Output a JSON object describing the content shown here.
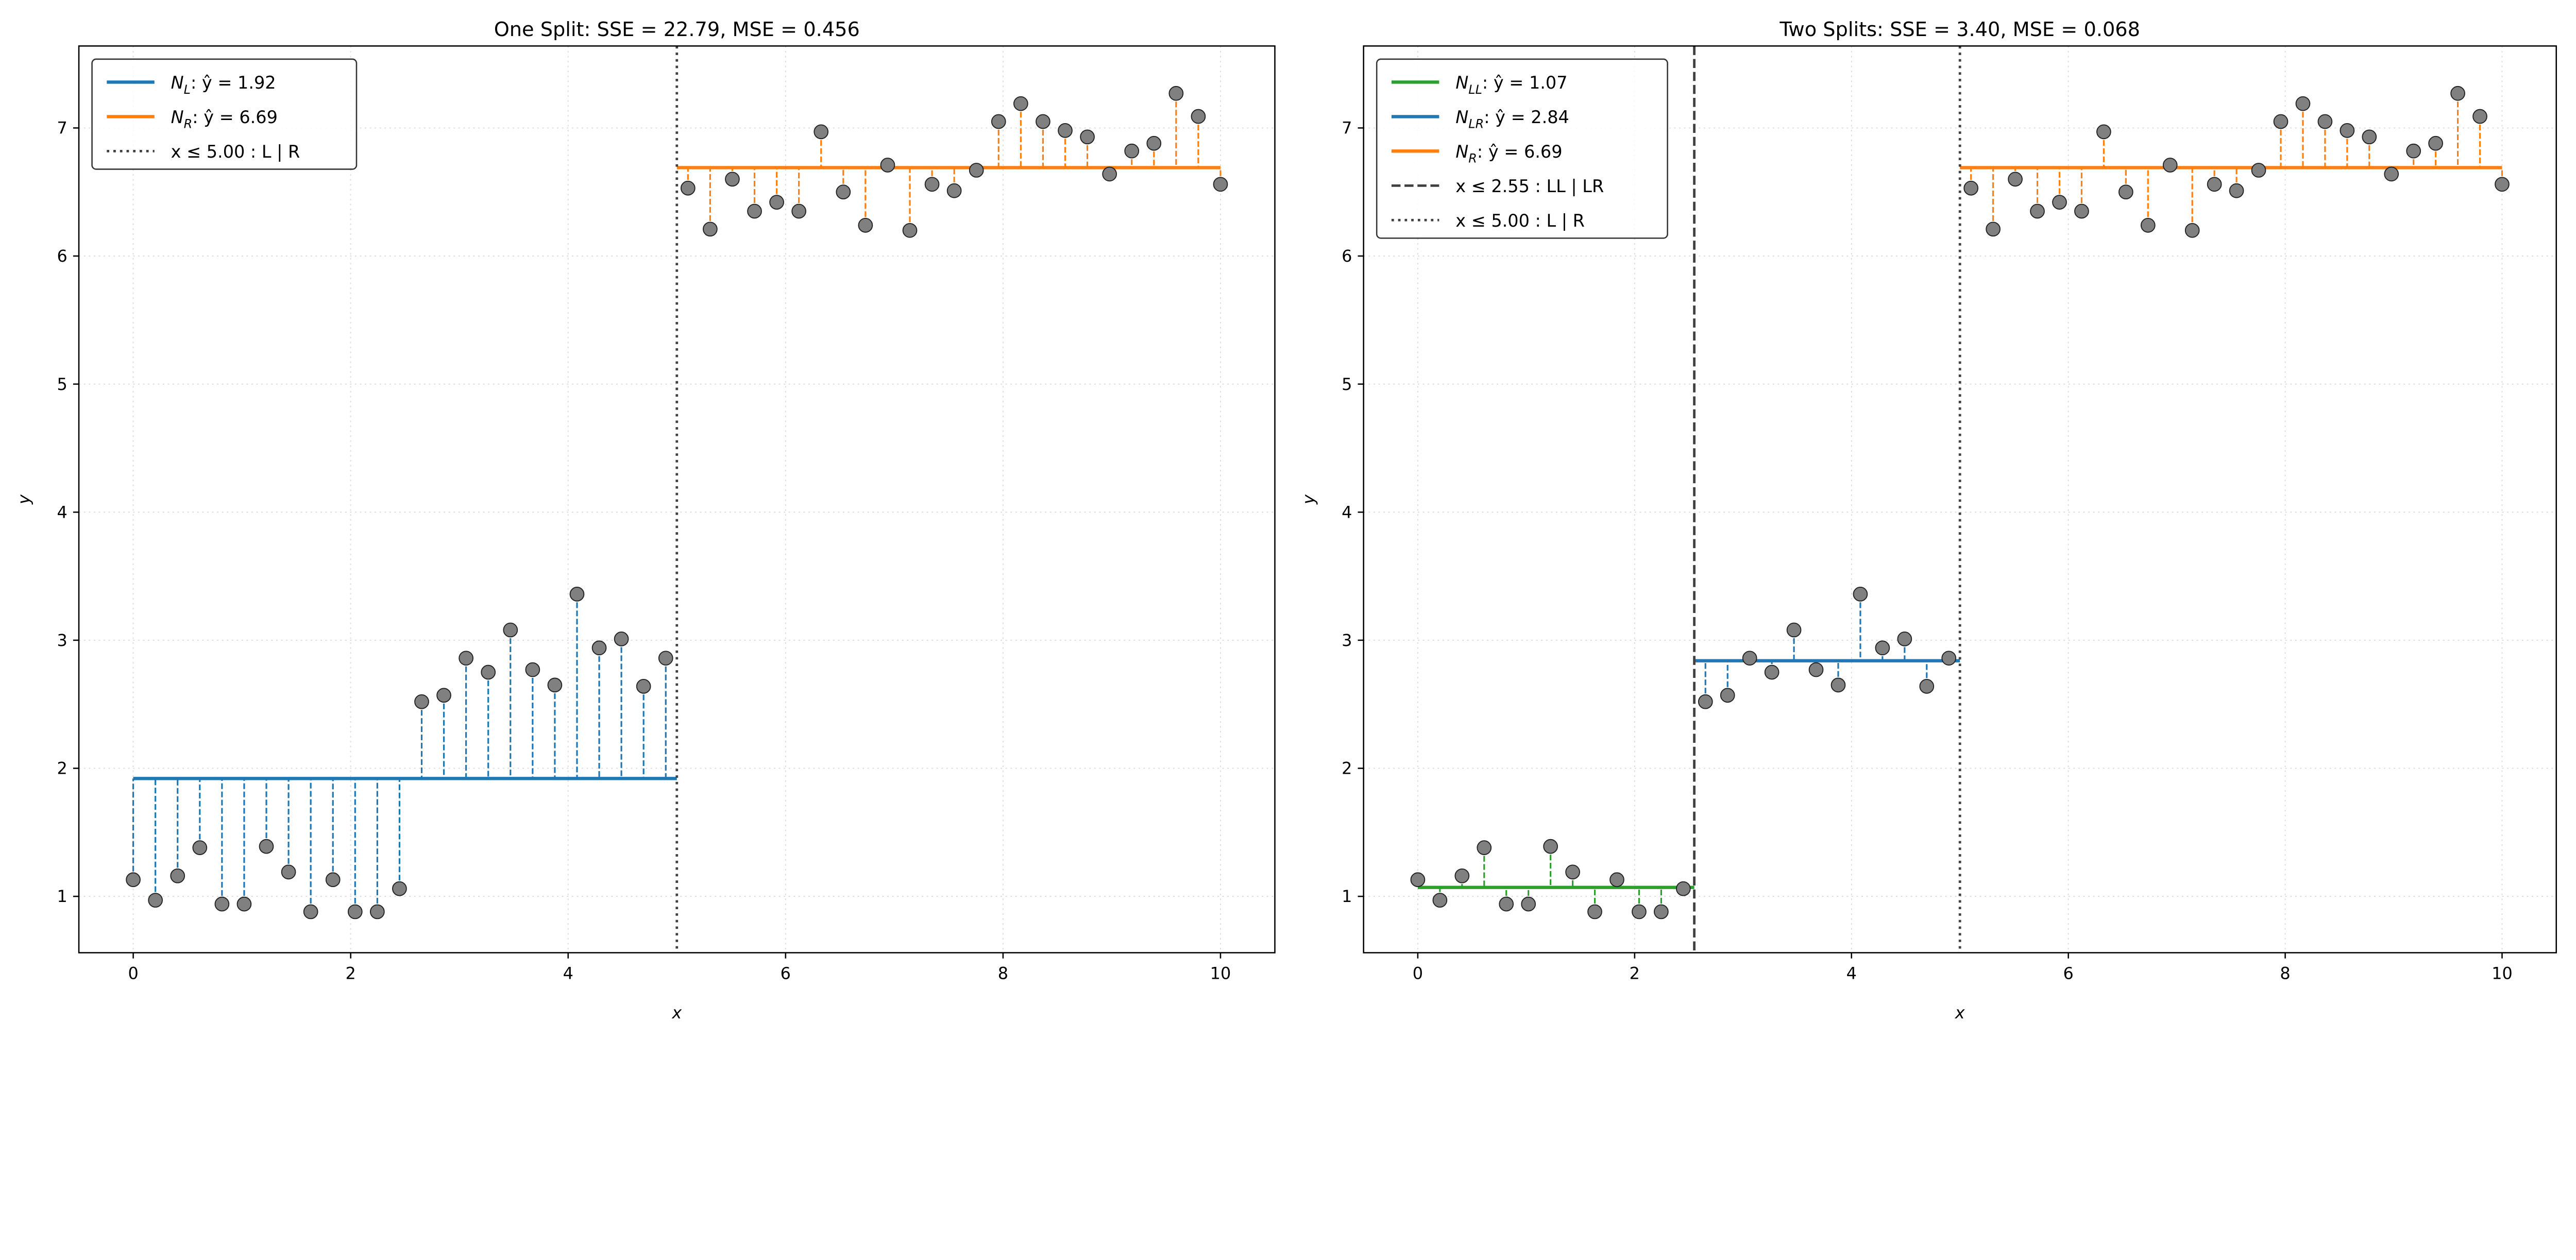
{
  "chart_data": [
    {
      "type": "scatter",
      "title": "One Split: SSE = 22.79, MSE = 0.456",
      "xlabel": "x",
      "ylabel": "y",
      "xlim": [
        -0.5,
        10.5
      ],
      "ylim": [
        0.56,
        7.64
      ],
      "xticks": [
        "0",
        "2",
        "4",
        "6",
        "8",
        "10"
      ],
      "yticks": [
        "1",
        "2",
        "3",
        "4",
        "5",
        "6",
        "7"
      ],
      "grid": true,
      "legend_placement": "upper-left",
      "segments": [
        {
          "name_main": "N",
          "name_sub": "L",
          "name_rest": ": ŷ = 1.92",
          "value": 1.92,
          "x_from": 0,
          "x_to": 5.0,
          "color": "#1f77b4"
        },
        {
          "name_main": "N",
          "name_sub": "R",
          "name_rest": ": ŷ = 6.69",
          "value": 6.69,
          "x_from": 5.0,
          "x_to": 10,
          "color": "#ff7f0e"
        }
      ],
      "splits": [
        {
          "label": "x ≤ 5.00 : L | R",
          "x": 5.0,
          "style": "dotted"
        }
      ]
    },
    {
      "type": "scatter",
      "title": "Two Splits: SSE = 3.40, MSE = 0.068",
      "xlabel": "x",
      "ylabel": "y",
      "xlim": [
        -0.5,
        10.5
      ],
      "ylim": [
        0.56,
        7.64
      ],
      "xticks": [
        "0",
        "2",
        "4",
        "6",
        "8",
        "10"
      ],
      "yticks": [
        "1",
        "2",
        "3",
        "4",
        "5",
        "6",
        "7"
      ],
      "grid": true,
      "legend_placement": "upper-left",
      "segments": [
        {
          "name_main": "N",
          "name_sub": "LL",
          "name_rest": ": ŷ = 1.07",
          "value": 1.07,
          "x_from": 0,
          "x_to": 2.55,
          "color": "#2ca02c"
        },
        {
          "name_main": "N",
          "name_sub": "LR",
          "name_rest": ": ŷ = 2.84",
          "value": 2.84,
          "x_from": 2.55,
          "x_to": 5.0,
          "color": "#1f77b4"
        },
        {
          "name_main": "N",
          "name_sub": "R",
          "name_rest": ": ŷ = 6.69",
          "value": 6.69,
          "x_from": 5.0,
          "x_to": 10,
          "color": "#ff7f0e"
        }
      ],
      "splits": [
        {
          "label": "x ≤ 2.55 : LL | LR",
          "x": 2.55,
          "style": "dashed"
        },
        {
          "label": "x ≤ 5.00 : L | R",
          "x": 5.0,
          "style": "dotted"
        }
      ]
    }
  ],
  "points_y": [
    1.13,
    0.97,
    1.16,
    1.38,
    0.94,
    0.94,
    1.39,
    1.19,
    0.88,
    1.13,
    0.88,
    0.88,
    1.06,
    2.52,
    2.57,
    2.86,
    2.75,
    3.08,
    2.77,
    2.65,
    3.36,
    2.94,
    3.01,
    2.64,
    2.86,
    6.53,
    6.21,
    6.6,
    6.35,
    6.42,
    6.35,
    6.97,
    6.5,
    6.24,
    6.71,
    6.2,
    6.56,
    6.51,
    6.67,
    7.05,
    7.19,
    7.05,
    6.98,
    6.93,
    6.64,
    6.82,
    6.88,
    7.27,
    7.09,
    6.56
  ],
  "points_x_range": [
    0,
    10
  ],
  "point_color": "#808080"
}
